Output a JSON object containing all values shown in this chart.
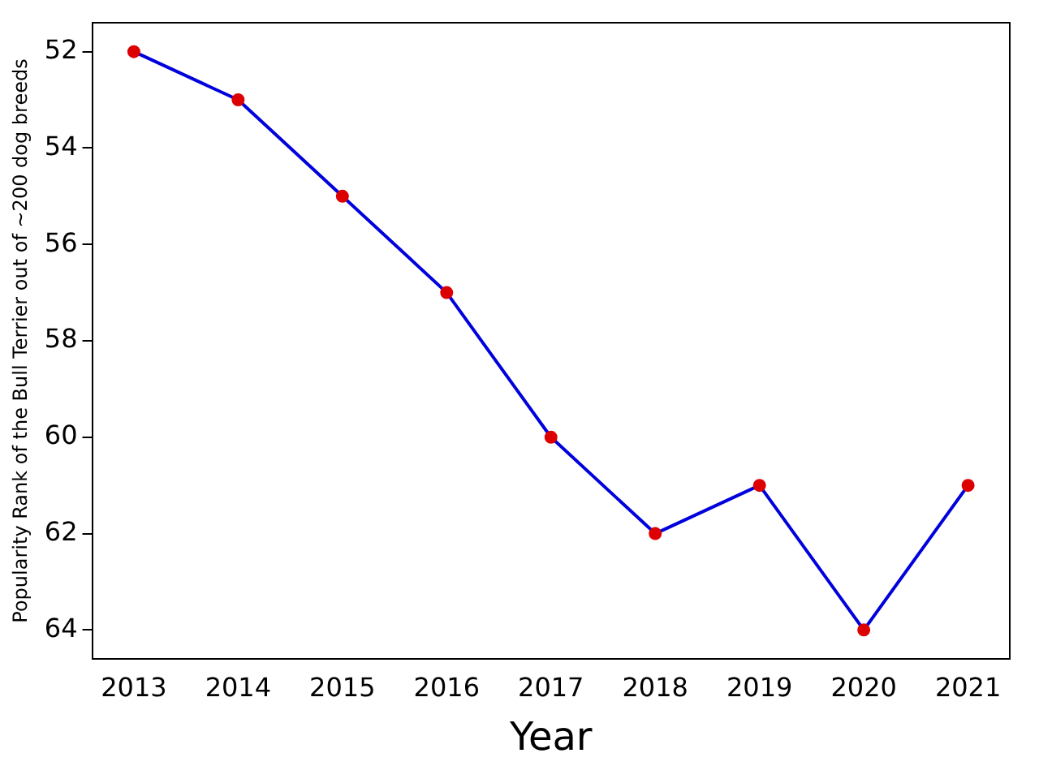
{
  "chart_data": {
    "type": "line",
    "xlabel": "Year",
    "ylabel": "Popularity Rank of the Bull Terrier out of ~200 dog breeds",
    "x": [
      2013,
      2014,
      2015,
      2016,
      2017,
      2018,
      2019,
      2020,
      2021
    ],
    "series": [
      {
        "color": "#0000dd",
        "colors": [
          "#dd0000",
          "#dd0000",
          "#dd0000",
          "#dd0000",
          "#dd0000",
          "#dd0000",
          "#dd0000",
          "#dd0000",
          "#dd0000"
        ],
        "values": [
          52,
          53,
          55,
          57,
          60,
          62,
          61,
          64,
          61
        ]
      }
    ],
    "xlim": [
      2012.6,
      2021.4
    ],
    "xticks": [
      2013,
      2014,
      2015,
      2016,
      2017,
      2018,
      2019,
      2020,
      2021
    ],
    "ylim": [
      64.6,
      51.4
    ],
    "yticks": [
      52,
      54,
      56,
      58,
      60,
      62,
      64
    ],
    "marker": "circle",
    "line_style": "solid",
    "grid": false,
    "legend": false
  }
}
